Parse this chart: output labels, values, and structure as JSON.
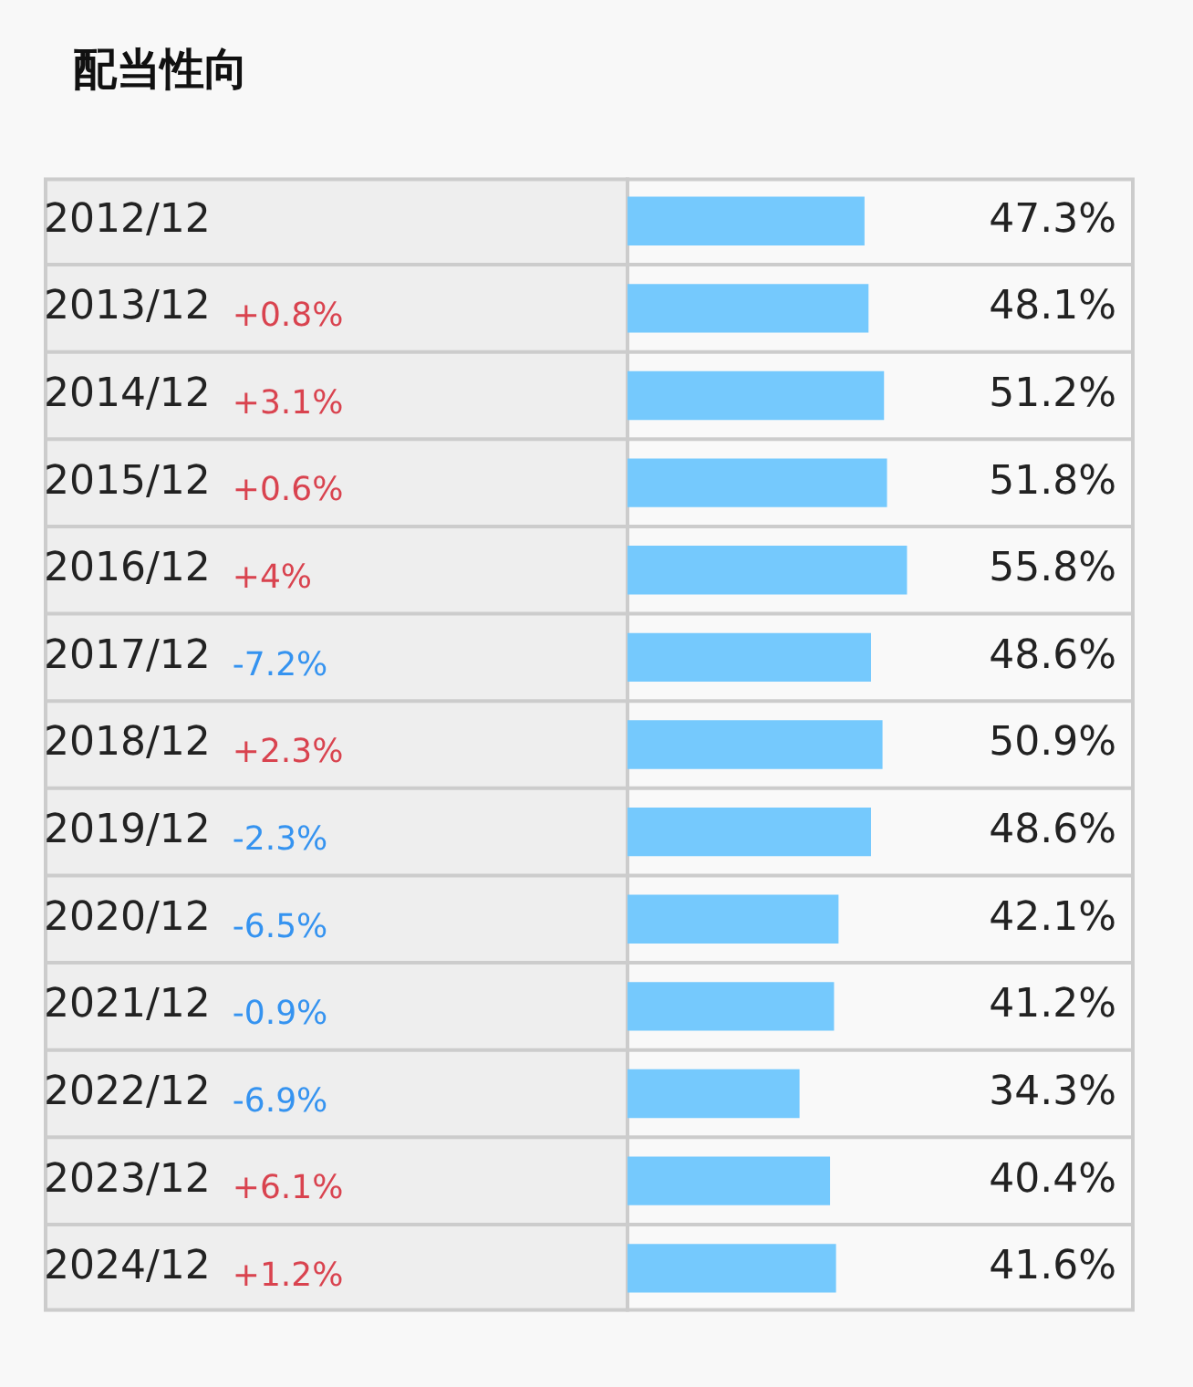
{
  "chart_data": {
    "type": "bar",
    "title": "配当性向",
    "orientation": "horizontal",
    "categories": [
      "2012/12",
      "2013/12",
      "2014/12",
      "2015/12",
      "2016/12",
      "2017/12",
      "2018/12",
      "2019/12",
      "2020/12",
      "2021/12",
      "2022/12",
      "2023/12",
      "2024/12"
    ],
    "values": [
      47.3,
      48.1,
      51.2,
      51.8,
      55.8,
      48.6,
      50.9,
      48.6,
      42.1,
      41.2,
      34.3,
      40.4,
      41.6
    ],
    "value_labels": [
      "47.3%",
      "48.1%",
      "51.2%",
      "51.8%",
      "55.8%",
      "48.6%",
      "50.9%",
      "48.6%",
      "42.1%",
      "41.2%",
      "34.3%",
      "40.4%",
      "41.6%"
    ],
    "color": "#75c9fd",
    "xlim": [
      0,
      100
    ],
    "tick_labels": "y",
    "grid": "y",
    "legend": false,
    "annotations": [
      "+0.8%",
      "+3.1%",
      "+0.6%",
      "+4%",
      "-7.2%",
      "+2.3%",
      "-2.3%",
      "-6.5%",
      "-0.9%",
      "-6.9%",
      "+6.1%",
      "+1.2%"
    ]
  }
}
